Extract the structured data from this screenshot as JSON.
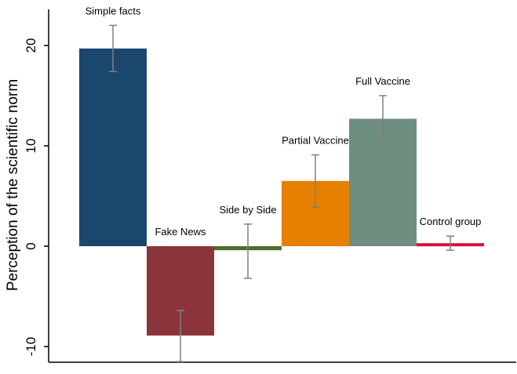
{
  "chart_data": {
    "type": "bar",
    "title": "",
    "xlabel": "",
    "ylabel": "Perception of the scientific norm",
    "ylim": [
      -11.5,
      23
    ],
    "yticks": [
      -10,
      0,
      10,
      20
    ],
    "ytick_labels": [
      "-10",
      "0",
      "10",
      "20"
    ],
    "grid": false,
    "categories": [
      "Simple facts",
      "Fake News",
      "Side by Side",
      "Partial Vaccine",
      "Full Vaccine",
      "Control group"
    ],
    "values": [
      19.7,
      -8.9,
      -0.4,
      6.5,
      12.7,
      0.3
    ],
    "error_low": [
      17.4,
      -11.5,
      -3.2,
      3.9,
      10.4,
      -0.4
    ],
    "error_high": [
      22.0,
      -6.4,
      2.2,
      9.1,
      15.0,
      1.0
    ],
    "colors": [
      "#1b466e",
      "#8c343c",
      "#4e6e2c",
      "#e58000",
      "#6e8e80",
      "#d6123f"
    ],
    "error_bar_color": "#808080"
  }
}
